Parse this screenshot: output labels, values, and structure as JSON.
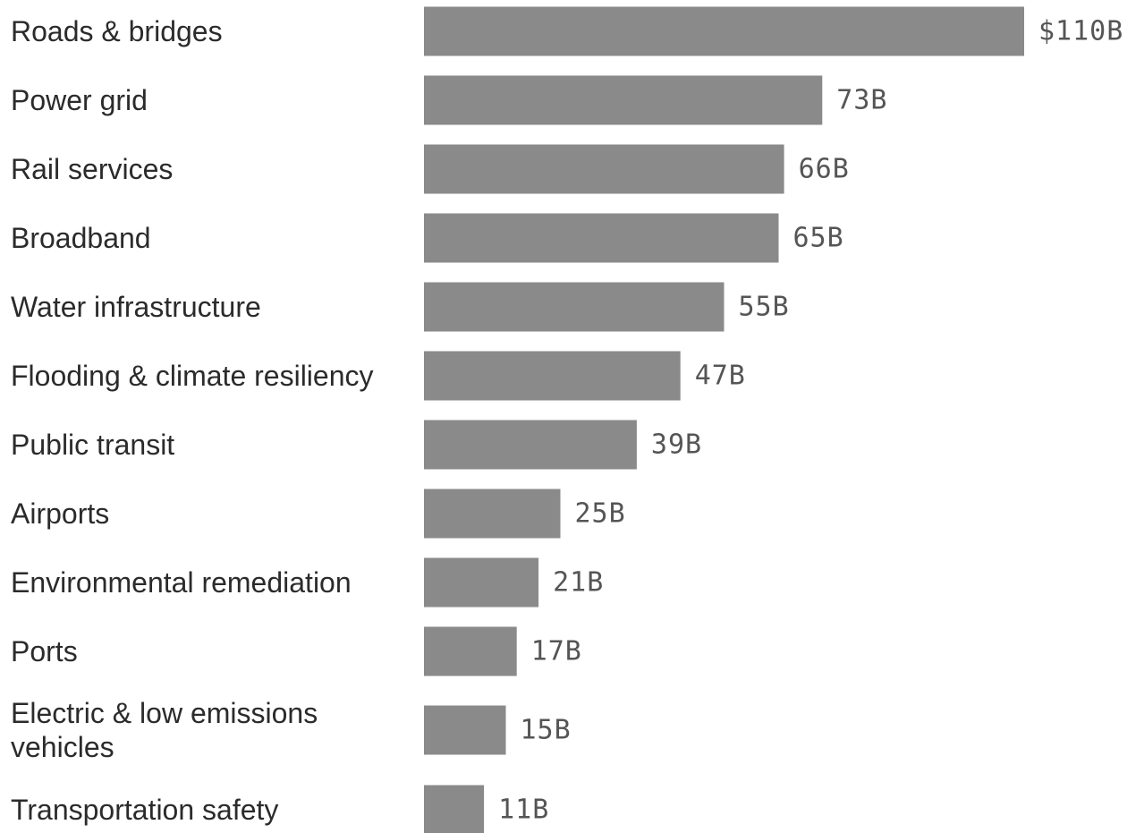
{
  "chart_data": {
    "type": "bar",
    "orientation": "horizontal",
    "categories": [
      [
        "Roads & bridges"
      ],
      [
        "Power grid"
      ],
      [
        "Rail services"
      ],
      [
        "Broadband"
      ],
      [
        "Water infrastructure"
      ],
      [
        "Flooding & climate resiliency"
      ],
      [
        "Public transit"
      ],
      [
        "Airports"
      ],
      [
        "Environmental remediation"
      ],
      [
        "Ports"
      ],
      [
        "Electric & low emissions",
        "vehicles"
      ],
      [
        "Transportation safety"
      ]
    ],
    "values": [
      110,
      73,
      66,
      65,
      55,
      47,
      39,
      25,
      21,
      17,
      15,
      11
    ],
    "value_labels": [
      "$110B",
      "73B",
      "66B",
      "65B",
      "55B",
      "47B",
      "39B",
      "25B",
      "21B",
      "17B",
      "15B",
      "11B"
    ],
    "unit": "billion USD",
    "xlim": [
      0,
      110
    ],
    "grid": false,
    "bar_color": "#8a8a8a",
    "label_color": "#2b2b2b",
    "value_label_color": "#555555"
  }
}
